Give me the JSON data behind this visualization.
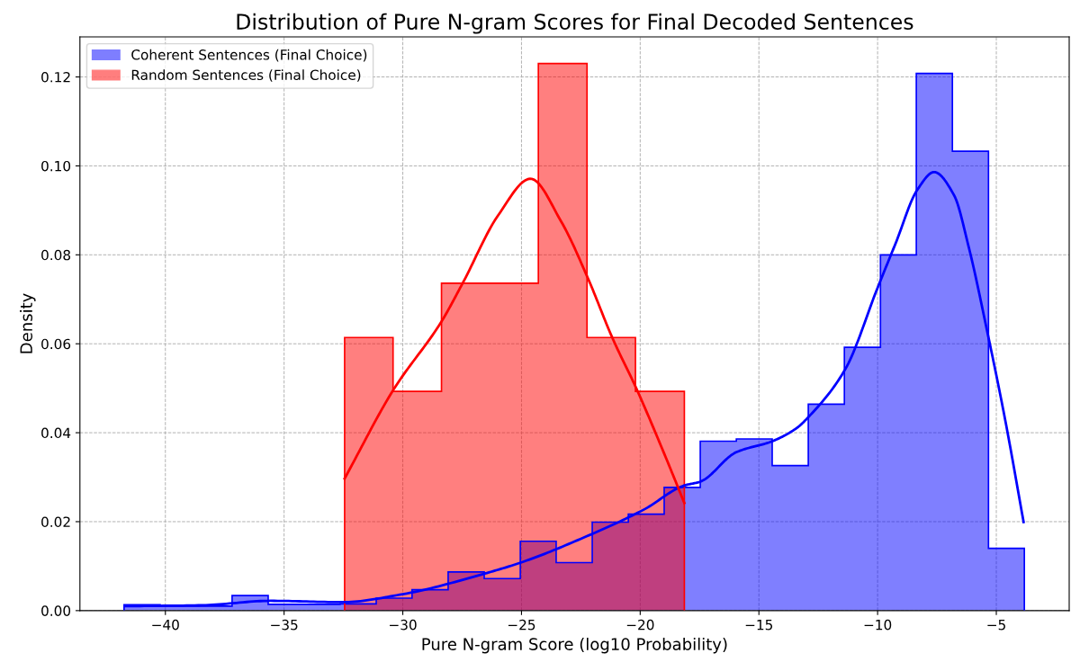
{
  "chart_data": {
    "type": "histogram",
    "title": "Distribution of Pure N-gram Scores for Final Decoded Sentences",
    "xlabel": "Pure N-gram Score (log10 Probability)",
    "ylabel": "Density",
    "series": [
      {
        "name": "Coherent Sentences (Final Choice)",
        "color": "#0000ff",
        "bins": [
          -41.74,
          -40.22,
          -38.71,
          -37.19,
          -35.67,
          -34.16,
          -32.64,
          -31.12,
          -29.61,
          -28.09,
          -26.57,
          -25.05,
          -23.54,
          -22.02,
          -20.5,
          -18.99,
          -17.47,
          -15.95,
          -14.44,
          -12.92,
          -11.4,
          -9.88,
          -8.37,
          -6.85,
          -5.33,
          -3.82
        ],
        "values": [
          0.0013,
          0.001,
          0.001,
          0.0034,
          0.0014,
          0.0014,
          0.0015,
          0.0028,
          0.0047,
          0.0087,
          0.0072,
          0.0156,
          0.0108,
          0.0199,
          0.0217,
          0.0277,
          0.0381,
          0.0386,
          0.0326,
          0.0464,
          0.0592,
          0.08,
          0.1208,
          0.1033,
          0.014
        ]
      },
      {
        "name": "Random Sentences (Final Choice)",
        "color": "#ff0000",
        "bins": [
          -32.45,
          -30.41,
          -28.37,
          -26.33,
          -24.29,
          -22.24,
          -20.2,
          -18.14
        ],
        "values": [
          0.0614,
          0.0493,
          0.0736,
          0.0736,
          0.123,
          0.0614,
          0.0493
        ]
      },
      {
        "type": "line",
        "color": "#0000ff",
        "x": [
          -41.71,
          -38.45,
          -35.57,
          -32.54,
          -30.0,
          -26.63,
          -24.92,
          -22.39,
          -19.85,
          -18.16,
          -17.47,
          -15.96,
          -14.43,
          -13.42,
          -12.9,
          -11.36,
          -10.0,
          -9.24,
          -8.33,
          -7.62,
          -6.78,
          -6.16,
          -5.38,
          -4.62,
          -3.85
        ],
        "values": [
          0.001,
          0.0012,
          0.0022,
          0.0019,
          0.0037,
          0.0082,
          0.011,
          0.0164,
          0.0227,
          0.0281,
          0.029,
          0.0356,
          0.0381,
          0.041,
          0.0436,
          0.0543,
          0.0726,
          0.0826,
          0.0946,
          0.0986,
          0.0934,
          0.0817,
          0.0627,
          0.0427,
          0.0199
        ]
      },
      {
        "type": "line",
        "color": "#ff0000",
        "x": [
          -32.45,
          -30.39,
          -28.37,
          -27.5,
          -25.98,
          -24.62,
          -23.33,
          -22.2,
          -21.17,
          -20.15,
          -19.02,
          -18.14
        ],
        "values": [
          0.0297,
          0.0497,
          0.065,
          0.0734,
          0.0889,
          0.0971,
          0.0875,
          0.0747,
          0.0613,
          0.0498,
          0.0357,
          0.0242
        ]
      }
    ],
    "xlim": [
      -43.6,
      -1.93
    ],
    "ylim": [
      0,
      0.129
    ],
    "xticks": [
      {
        "value": -40,
        "label": "−40"
      },
      {
        "value": -35,
        "label": "−35"
      },
      {
        "value": -30,
        "label": "−30"
      },
      {
        "value": -25,
        "label": "−25"
      },
      {
        "value": -20,
        "label": "−20"
      },
      {
        "value": -15,
        "label": "−15"
      },
      {
        "value": -10,
        "label": "−10"
      },
      {
        "value": -5,
        "label": "−5"
      }
    ],
    "yticks": [
      {
        "value": 0,
        "label": "0.00"
      },
      {
        "value": 0.02,
        "label": "0.02"
      },
      {
        "value": 0.04,
        "label": "0.04"
      },
      {
        "value": 0.06,
        "label": "0.06"
      },
      {
        "value": 0.08,
        "label": "0.08"
      },
      {
        "value": 0.1,
        "label": "0.10"
      },
      {
        "value": 0.12,
        "label": "0.12"
      }
    ],
    "grid": true,
    "legend": "top left"
  }
}
